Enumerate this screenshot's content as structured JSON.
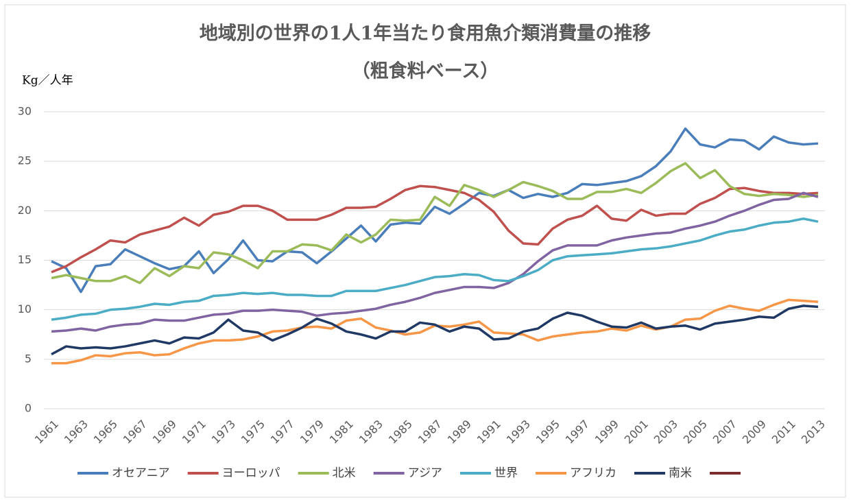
{
  "chart_data": {
    "type": "line",
    "title": "地域別の世界の1人1年当たり食用魚介類消費量の推移",
    "subtitle": "（粗食料ベース）",
    "y_label": "Kg／人年",
    "x": [
      1961,
      1962,
      1963,
      1964,
      1965,
      1966,
      1967,
      1968,
      1969,
      1970,
      1971,
      1972,
      1973,
      1974,
      1975,
      1976,
      1977,
      1978,
      1979,
      1980,
      1981,
      1982,
      1983,
      1984,
      1985,
      1986,
      1987,
      1988,
      1989,
      1990,
      1991,
      1992,
      1993,
      1994,
      1995,
      1996,
      1997,
      1998,
      1999,
      2000,
      2001,
      2002,
      2003,
      2004,
      2005,
      2006,
      2007,
      2008,
      2009,
      2010,
      2011,
      2012,
      2013
    ],
    "xlim": [
      1961,
      2013
    ],
    "xticks": [
      1961,
      1963,
      1965,
      1967,
      1969,
      1971,
      1973,
      1975,
      1977,
      1979,
      1981,
      1983,
      1985,
      1987,
      1989,
      1991,
      1993,
      1995,
      1997,
      1999,
      2001,
      2003,
      2005,
      2007,
      2009,
      2011,
      2013
    ],
    "ylim": [
      0,
      30
    ],
    "yticks": [
      0,
      5,
      10,
      15,
      20,
      25,
      30
    ],
    "grid": true,
    "legend": "bottom",
    "series": [
      {
        "name": "オセアニア",
        "color": "#4a7ebb",
        "values": [
          14.9,
          14.2,
          11.8,
          14.4,
          14.6,
          16.1,
          15.4,
          14.7,
          14.1,
          14.4,
          15.9,
          13.7,
          15.1,
          17.0,
          15.0,
          14.9,
          15.9,
          15.8,
          14.7,
          15.9,
          17.2,
          18.5,
          16.9,
          18.6,
          18.8,
          18.7,
          20.4,
          19.7,
          20.7,
          21.8,
          21.5,
          22.1,
          21.3,
          21.7,
          21.4,
          21.8,
          22.7,
          22.6,
          22.8,
          23.0,
          23.5,
          24.5,
          26.0,
          28.3,
          26.7,
          26.4,
          27.2,
          27.1,
          26.2,
          27.5,
          26.9,
          26.7,
          26.8
        ]
      },
      {
        "name": "ヨーロッパ",
        "color": "#c0504d",
        "values": [
          13.8,
          14.4,
          15.3,
          16.1,
          17.0,
          16.8,
          17.6,
          18.0,
          18.4,
          19.3,
          18.5,
          19.6,
          19.9,
          20.5,
          20.5,
          20.0,
          19.1,
          19.1,
          19.1,
          19.6,
          20.3,
          20.3,
          20.4,
          21.2,
          22.1,
          22.5,
          22.4,
          22.1,
          21.8,
          21.1,
          19.9,
          18.0,
          16.7,
          16.6,
          18.2,
          19.1,
          19.5,
          20.5,
          19.2,
          19.0,
          20.1,
          19.5,
          19.7,
          19.7,
          20.7,
          21.3,
          22.2,
          22.3,
          22.0,
          21.8,
          21.8,
          21.7,
          21.8
        ]
      },
      {
        "name": "北米",
        "color": "#9bbb59",
        "values": [
          13.2,
          13.5,
          13.2,
          12.9,
          12.9,
          13.4,
          12.7,
          14.2,
          13.4,
          14.4,
          14.2,
          15.8,
          15.6,
          15.0,
          14.2,
          15.9,
          15.9,
          16.6,
          16.5,
          16.0,
          17.6,
          16.8,
          17.6,
          19.1,
          19.0,
          19.1,
          21.4,
          20.5,
          22.6,
          22.1,
          21.4,
          22.1,
          22.9,
          22.5,
          22.0,
          21.2,
          21.2,
          21.9,
          21.9,
          22.2,
          21.8,
          22.8,
          24.0,
          24.8,
          23.3,
          24.1,
          22.5,
          21.7,
          21.5,
          21.7,
          21.6,
          21.4,
          21.6
        ]
      },
      {
        "name": "アジア",
        "color": "#8064a2",
        "values": [
          7.8,
          7.9,
          8.1,
          7.9,
          8.3,
          8.5,
          8.6,
          9.0,
          8.9,
          8.9,
          9.2,
          9.5,
          9.6,
          9.9,
          9.9,
          10.0,
          9.9,
          9.8,
          9.4,
          9.6,
          9.7,
          9.9,
          10.1,
          10.5,
          10.8,
          11.2,
          11.7,
          12.0,
          12.3,
          12.3,
          12.2,
          12.7,
          13.6,
          14.9,
          16.0,
          16.5,
          16.5,
          16.5,
          17.0,
          17.3,
          17.5,
          17.7,
          17.8,
          18.2,
          18.5,
          18.9,
          19.5,
          20.0,
          20.6,
          21.1,
          21.2,
          21.8,
          21.4
        ]
      },
      {
        "name": "世界",
        "color": "#4bacc6",
        "values": [
          9.0,
          9.2,
          9.5,
          9.6,
          10.0,
          10.1,
          10.3,
          10.6,
          10.5,
          10.8,
          10.9,
          11.4,
          11.5,
          11.7,
          11.6,
          11.7,
          11.5,
          11.5,
          11.4,
          11.4,
          11.9,
          11.9,
          11.9,
          12.2,
          12.5,
          12.9,
          13.3,
          13.4,
          13.6,
          13.5,
          13.0,
          12.9,
          13.4,
          14.0,
          15.0,
          15.4,
          15.5,
          15.6,
          15.7,
          15.9,
          16.1,
          16.2,
          16.4,
          16.7,
          17.0,
          17.5,
          17.9,
          18.1,
          18.5,
          18.8,
          18.9,
          19.2,
          18.9
        ]
      },
      {
        "name": "アフリカ",
        "color": "#f79646",
        "values": [
          4.6,
          4.6,
          4.9,
          5.4,
          5.3,
          5.6,
          5.7,
          5.4,
          5.5,
          6.1,
          6.6,
          6.9,
          6.9,
          7.0,
          7.3,
          7.8,
          7.9,
          8.2,
          8.3,
          8.1,
          8.9,
          9.1,
          8.2,
          7.9,
          7.5,
          7.7,
          8.4,
          8.3,
          8.5,
          8.8,
          7.7,
          7.6,
          7.5,
          6.9,
          7.3,
          7.5,
          7.7,
          7.8,
          8.1,
          7.9,
          8.4,
          8.0,
          8.3,
          9.0,
          9.1,
          9.9,
          10.4,
          10.1,
          9.9,
          10.5,
          11.0,
          10.9,
          10.8
        ]
      },
      {
        "name": "南米",
        "color": "#1f3864",
        "values": [
          5.5,
          6.3,
          6.1,
          6.2,
          6.1,
          6.3,
          6.6,
          6.9,
          6.6,
          7.2,
          7.1,
          7.7,
          9.0,
          7.9,
          7.7,
          6.9,
          7.5,
          8.2,
          9.1,
          8.6,
          7.8,
          7.5,
          7.1,
          7.8,
          7.8,
          8.7,
          8.5,
          7.8,
          8.3,
          8.1,
          7.0,
          7.1,
          7.8,
          8.1,
          9.1,
          9.7,
          9.4,
          8.8,
          8.3,
          8.2,
          8.7,
          8.1,
          8.3,
          8.4,
          8.0,
          8.6,
          8.8,
          9.0,
          9.3,
          9.2,
          10.1,
          10.4,
          10.3
        ]
      }
    ]
  }
}
